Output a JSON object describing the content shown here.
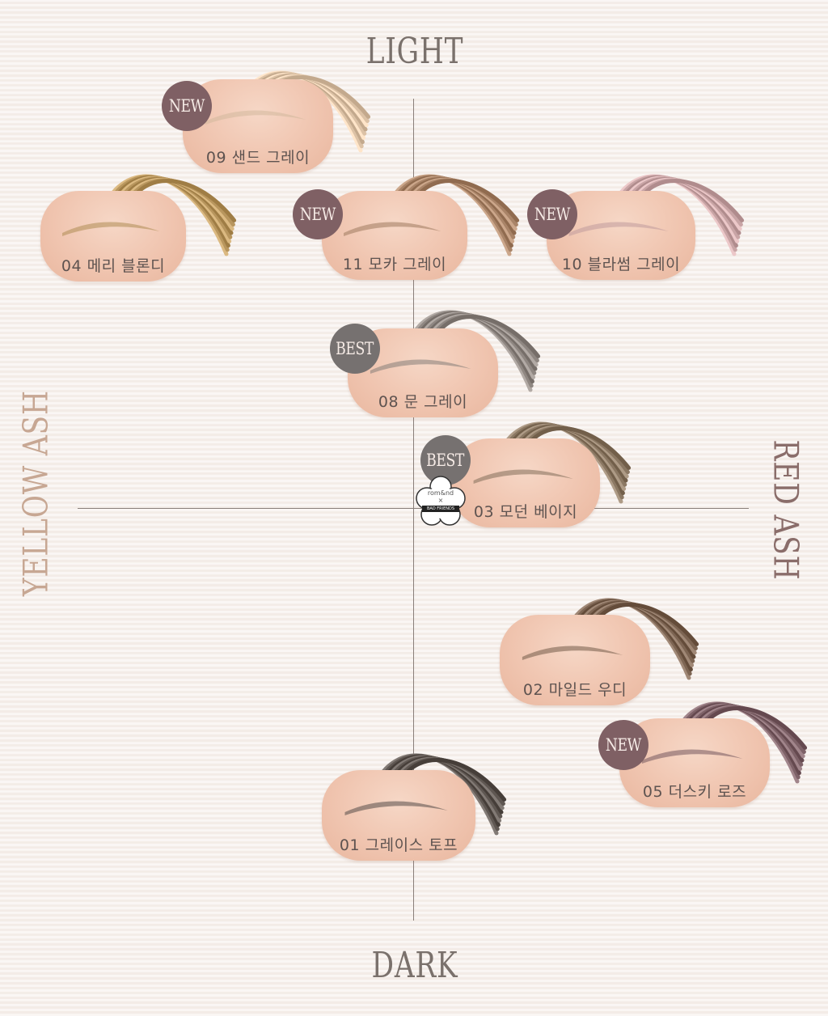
{
  "axes": {
    "top": "LIGHT",
    "bottom": "DARK",
    "left": "YELLOW ASH",
    "right": "RED ASH"
  },
  "colors": {
    "new_badge": "#7f6064",
    "best_badge": "#767170",
    "pill": "#f0c5b0",
    "axis_label": "#7a716c",
    "yellow_ash": "#c7a793",
    "red_ash": "#8a6d6a"
  },
  "shades": [
    {
      "name": "09 샌드 그레이",
      "badge": "NEW",
      "brush_color": "#dcc2a6"
    },
    {
      "name": "04 메리 블론디",
      "badge": "",
      "brush_color": "#b8965e"
    },
    {
      "name": "11 모카 그레이",
      "badge": "NEW",
      "brush_color": "#a98468"
    },
    {
      "name": "10 블라썸 그레이",
      "badge": "NEW",
      "brush_color": "#c9a5a6"
    },
    {
      "name": "08 문 그레이",
      "badge": "BEST",
      "brush_color": "#8f8782"
    },
    {
      "name": "03 모던 베이지",
      "badge": "BEST",
      "brush_color": "#8b7863"
    },
    {
      "name": "02 마일드 우디",
      "badge": "",
      "brush_color": "#7d6553"
    },
    {
      "name": "05 더스키 로즈",
      "badge": "NEW",
      "brush_color": "#7e6268"
    },
    {
      "name": "01 그레이스 토프",
      "badge": "",
      "brush_color": "#5f5752"
    }
  ],
  "collab_logo": {
    "line1": "rom&nd",
    "line2": "×",
    "line3": "BAD FRIENDS"
  }
}
